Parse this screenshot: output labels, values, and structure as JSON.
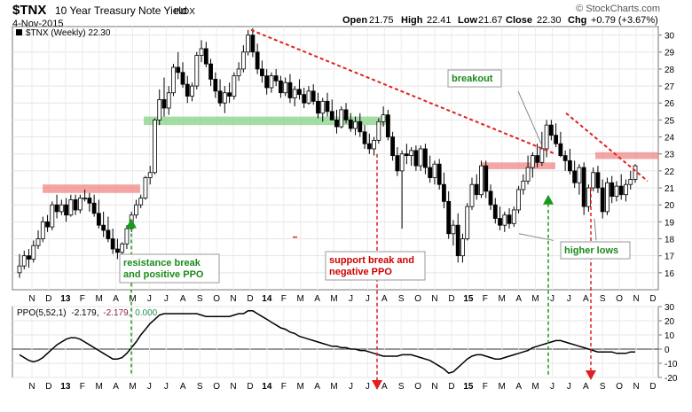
{
  "header": {
    "symbol": "$TNX",
    "name": "10 Year Treasury Note Yield",
    "exchange": "INDX",
    "date": "4-Nov-2015",
    "open_label": "Open",
    "open": "21.75",
    "high_label": "High",
    "high": "22.41",
    "low_label": "Low",
    "low": "21.67",
    "close_label": "Close",
    "close": "22.30",
    "chg_label": "Chg",
    "chg": "+0.79 (+3.67%)",
    "watermark": "© StockCharts.com"
  },
  "price_panel": {
    "legend": "$TNX (Weekly) 22.30",
    "legend_color": "#000000"
  },
  "ppo_panel": {
    "legend_name": "PPO(5,52,1)",
    "legend_value1": "-2.179,",
    "legend_value2": "-2.179,",
    "legend_value3": "0.000",
    "legend_color1": "#000000",
    "legend_color2": "#8b1a4a",
    "legend_color3": "#2e8b57"
  },
  "annotations": {
    "resistance": "resistance break\nand positive PPO",
    "support": "support break and\nnegative PPO",
    "breakout": "breakout",
    "higher_lows": "higher lows"
  },
  "colors": {
    "up": "#000000",
    "down": "#000000",
    "green_band": "#7fd07f",
    "red_band": "#f08080",
    "trend": "#e02020",
    "green_arrow": "#1a9a1a",
    "red_arrow": "#e02020",
    "ppo_line": "#000000",
    "annotation_green": "#1a8a1a",
    "annotation_red": "#cc0000"
  },
  "chart_data": {
    "type": "line",
    "title": "$TNX 10 Year Treasury Note Yield INDX",
    "x_axis_labels": [
      "N",
      "D",
      "13",
      "F",
      "M",
      "A",
      "M",
      "J",
      "J",
      "A",
      "S",
      "O",
      "N",
      "D",
      "14",
      "F",
      "M",
      "A",
      "M",
      "J",
      "J",
      "A",
      "S",
      "O",
      "N",
      "D",
      "15",
      "F",
      "M",
      "A",
      "M",
      "J",
      "J",
      "A",
      "S",
      "O",
      "N",
      "D"
    ],
    "price": {
      "ylim": [
        15,
        30.5
      ],
      "yticks": [
        16,
        17,
        18,
        19,
        20,
        21,
        22,
        23,
        24,
        25,
        26,
        27,
        28,
        29,
        30
      ],
      "weeks": [
        [
          16.0,
          17.1,
          15.7,
          16.4
        ],
        [
          16.4,
          17.3,
          16.2,
          17.0
        ],
        [
          17.0,
          17.4,
          16.3,
          16.8
        ],
        [
          16.8,
          17.9,
          16.6,
          17.6
        ],
        [
          17.6,
          18.5,
          17.4,
          18.0
        ],
        [
          18.0,
          19.3,
          17.8,
          19.0
        ],
        [
          19.0,
          19.4,
          18.4,
          18.7
        ],
        [
          18.7,
          20.2,
          18.5,
          20.0
        ],
        [
          20.0,
          20.6,
          19.2,
          19.6
        ],
        [
          19.6,
          20.3,
          19.4,
          20.0
        ],
        [
          20.0,
          20.4,
          19.0,
          19.4
        ],
        [
          19.4,
          20.6,
          19.3,
          20.3
        ],
        [
          20.3,
          20.6,
          19.4,
          19.7
        ],
        [
          19.7,
          20.6,
          19.5,
          20.4
        ],
        [
          20.4,
          20.9,
          20.2,
          20.4
        ],
        [
          20.4,
          20.7,
          19.6,
          20.1
        ],
        [
          20.1,
          20.6,
          19.3,
          19.5
        ],
        [
          19.5,
          20.3,
          18.6,
          18.8
        ],
        [
          18.8,
          19.6,
          18.1,
          18.5
        ],
        [
          18.5,
          19.3,
          17.8,
          18.0
        ],
        [
          18.0,
          18.6,
          17.1,
          17.4
        ],
        [
          17.4,
          18.0,
          16.8,
          17.2
        ],
        [
          17.2,
          17.8,
          16.6,
          17.7
        ],
        [
          17.7,
          18.8,
          17.4,
          18.6
        ],
        [
          18.6,
          19.6,
          18.4,
          19.4
        ],
        [
          19.4,
          20.3,
          19.2,
          20.0
        ],
        [
          20.0,
          20.6,
          19.8,
          20.4
        ],
        [
          20.4,
          21.7,
          20.3,
          21.6
        ],
        [
          21.6,
          22.3,
          21.2,
          21.9
        ],
        [
          21.9,
          25.1,
          21.8,
          25.0
        ],
        [
          25.0,
          26.8,
          24.7,
          26.2
        ],
        [
          26.2,
          27.5,
          25.2,
          25.7
        ],
        [
          25.7,
          27.0,
          25.3,
          26.6
        ],
        [
          26.6,
          28.3,
          26.4,
          28.1
        ],
        [
          28.1,
          29.0,
          27.4,
          27.8
        ],
        [
          27.8,
          28.4,
          26.9,
          27.1
        ],
        [
          27.1,
          27.6,
          26.0,
          26.4
        ],
        [
          26.4,
          27.2,
          26.1,
          27.0
        ],
        [
          27.0,
          29.0,
          26.8,
          28.8
        ],
        [
          28.8,
          29.7,
          28.4,
          29.2
        ],
        [
          29.2,
          29.6,
          28.1,
          28.3
        ],
        [
          28.3,
          28.6,
          27.0,
          27.4
        ],
        [
          27.4,
          27.8,
          26.3,
          26.7
        ],
        [
          26.7,
          27.4,
          25.8,
          26.0
        ],
        [
          26.0,
          27.0,
          25.4,
          26.6
        ],
        [
          26.6,
          27.2,
          26.0,
          26.4
        ],
        [
          26.4,
          27.8,
          26.2,
          27.6
        ],
        [
          27.6,
          28.4,
          27.3,
          28.0
        ],
        [
          28.0,
          29.4,
          27.8,
          29.0
        ],
        [
          29.0,
          30.3,
          28.8,
          30.0
        ],
        [
          30.0,
          30.4,
          28.7,
          29.0
        ],
        [
          29.0,
          29.5,
          27.7,
          28.0
        ],
        [
          28.0,
          28.5,
          27.2,
          27.6
        ],
        [
          27.6,
          28.0,
          26.5,
          26.9
        ],
        [
          26.9,
          27.8,
          26.6,
          27.6
        ],
        [
          27.6,
          28.0,
          27.0,
          27.3
        ],
        [
          27.3,
          27.6,
          26.3,
          26.6
        ],
        [
          26.6,
          27.5,
          26.4,
          27.2
        ],
        [
          27.2,
          27.7,
          26.0,
          26.3
        ],
        [
          26.3,
          27.0,
          25.8,
          26.8
        ],
        [
          26.8,
          27.4,
          26.2,
          26.5
        ],
        [
          26.5,
          26.9,
          25.7,
          26.0
        ],
        [
          26.0,
          27.0,
          25.9,
          26.7
        ],
        [
          26.7,
          27.1,
          25.9,
          26.1
        ],
        [
          26.1,
          26.6,
          25.1,
          25.4
        ],
        [
          25.4,
          26.3,
          24.9,
          26.1
        ],
        [
          26.1,
          26.6,
          25.2,
          25.5
        ],
        [
          25.5,
          26.2,
          25.0,
          25.0
        ],
        [
          25.0,
          25.6,
          24.2,
          24.6
        ],
        [
          24.6,
          25.8,
          24.5,
          25.6
        ],
        [
          25.6,
          26.0,
          24.8,
          25.0
        ],
        [
          25.0,
          25.4,
          24.3,
          24.5
        ],
        [
          24.5,
          25.2,
          24.1,
          24.9
        ],
        [
          24.9,
          25.4,
          24.0,
          24.3
        ],
        [
          24.3,
          24.7,
          23.3,
          23.6
        ],
        [
          23.6,
          24.2,
          23.0,
          23.3
        ],
        [
          23.3,
          24.0,
          22.9,
          23.8
        ],
        [
          23.8,
          25.1,
          23.6,
          24.9
        ],
        [
          24.9,
          25.8,
          24.6,
          25.3
        ],
        [
          25.3,
          25.6,
          23.8,
          24.0
        ],
        [
          24.0,
          24.3,
          22.6,
          22.9
        ],
        [
          22.9,
          23.4,
          21.7,
          22.0
        ],
        [
          22.0,
          23.2,
          18.6,
          23.0
        ],
        [
          23.0,
          23.6,
          22.4,
          22.9
        ],
        [
          22.9,
          23.4,
          22.3,
          23.2
        ],
        [
          23.2,
          23.5,
          22.0,
          22.3
        ],
        [
          22.3,
          23.5,
          22.0,
          23.3
        ],
        [
          23.3,
          23.6,
          21.8,
          22.2
        ],
        [
          22.2,
          22.9,
          21.3,
          21.6
        ],
        [
          21.6,
          22.6,
          21.2,
          22.4
        ],
        [
          22.4,
          22.7,
          20.9,
          21.2
        ],
        [
          21.2,
          21.9,
          19.8,
          20.2
        ],
        [
          20.2,
          20.8,
          18.0,
          18.3
        ],
        [
          18.3,
          19.1,
          17.6,
          18.8
        ],
        [
          18.8,
          19.5,
          16.6,
          17.0
        ],
        [
          17.0,
          18.3,
          16.6,
          18.0
        ],
        [
          18.0,
          20.1,
          17.9,
          19.9
        ],
        [
          19.9,
          21.6,
          19.7,
          21.2
        ],
        [
          21.2,
          21.8,
          20.3,
          20.6
        ],
        [
          20.6,
          22.6,
          20.4,
          22.3
        ],
        [
          22.3,
          22.6,
          20.4,
          20.8
        ],
        [
          20.8,
          21.2,
          19.7,
          20.0
        ],
        [
          20.0,
          20.4,
          18.9,
          19.2
        ],
        [
          19.2,
          19.9,
          18.5,
          18.8
        ],
        [
          18.8,
          19.6,
          18.4,
          19.4
        ],
        [
          19.4,
          19.8,
          18.6,
          18.9
        ],
        [
          18.9,
          19.9,
          18.7,
          19.7
        ],
        [
          19.7,
          21.1,
          19.5,
          20.9
        ],
        [
          20.9,
          21.8,
          20.6,
          21.4
        ],
        [
          21.4,
          22.9,
          21.2,
          22.2
        ],
        [
          22.2,
          23.1,
          21.6,
          22.9
        ],
        [
          22.9,
          23.6,
          22.2,
          22.5
        ],
        [
          22.5,
          24.3,
          22.3,
          23.3
        ],
        [
          23.3,
          25.0,
          22.8,
          24.7
        ],
        [
          24.7,
          25.0,
          23.8,
          24.1
        ],
        [
          24.1,
          24.8,
          23.4,
          23.6
        ],
        [
          23.6,
          24.3,
          22.8,
          22.9
        ],
        [
          22.9,
          23.2,
          22.0,
          22.6
        ],
        [
          22.6,
          23.3,
          21.8,
          22.0
        ],
        [
          22.0,
          22.6,
          21.0,
          21.3
        ],
        [
          21.3,
          22.4,
          20.6,
          22.2
        ],
        [
          22.2,
          22.5,
          19.4,
          19.9
        ],
        [
          19.9,
          21.2,
          19.6,
          21.0
        ],
        [
          21.0,
          22.2,
          20.8,
          21.9
        ],
        [
          21.9,
          22.3,
          20.7,
          21.0
        ],
        [
          21.0,
          21.5,
          19.2,
          19.6
        ],
        [
          19.6,
          21.6,
          19.4,
          21.3
        ],
        [
          21.3,
          21.7,
          20.1,
          20.5
        ],
        [
          20.5,
          21.4,
          20.2,
          21.1
        ],
        [
          21.1,
          21.8,
          20.3,
          20.6
        ],
        [
          20.6,
          21.5,
          20.2,
          21.2
        ],
        [
          21.2,
          22.0,
          20.9,
          21.5
        ],
        [
          21.5,
          22.4,
          21.3,
          22.3
        ]
      ]
    },
    "ppo": {
      "ylim": [
        -20,
        30
      ],
      "yticks": [
        -20,
        -10,
        0,
        10,
        20,
        30
      ],
      "values": [
        -4,
        -6,
        -8,
        -9,
        -8,
        -6,
        -3,
        0,
        3,
        5,
        7,
        8,
        8,
        7,
        5,
        3,
        1,
        -1,
        -3,
        -5,
        -7,
        -7,
        -6,
        -3,
        1,
        5,
        10,
        14,
        18,
        21,
        24,
        25,
        25,
        25,
        25,
        25,
        25,
        25,
        25,
        24,
        23,
        23,
        23,
        23,
        23,
        23,
        24,
        25,
        25,
        27,
        27,
        25,
        23,
        21,
        19,
        17,
        15,
        14,
        12,
        11,
        9,
        8,
        7,
        6,
        5,
        4,
        3,
        2,
        2,
        1,
        1,
        0,
        0,
        -1,
        -1,
        -2,
        -3,
        -4,
        -5,
        -5,
        -5,
        -5,
        -4,
        -4,
        -4,
        -5,
        -6,
        -7,
        -8,
        -10,
        -12,
        -14,
        -17,
        -16,
        -13,
        -10,
        -7,
        -5,
        -4,
        -4,
        -5,
        -6,
        -7,
        -7,
        -6,
        -5,
        -4,
        -3,
        -2,
        -1,
        1,
        2,
        3,
        4,
        5,
        6,
        6,
        5,
        4,
        3,
        2,
        1,
        0,
        -1,
        -2,
        -2,
        -2,
        -2,
        -3,
        -3,
        -3,
        -2,
        -2
      ]
    },
    "resistance_band": [
      20.7,
      21.2
    ],
    "support_band": [
      24.7,
      25.2
    ],
    "red_band_2015": [
      22.1,
      22.5
    ],
    "red_band_late": [
      22.7,
      23.1
    ]
  }
}
